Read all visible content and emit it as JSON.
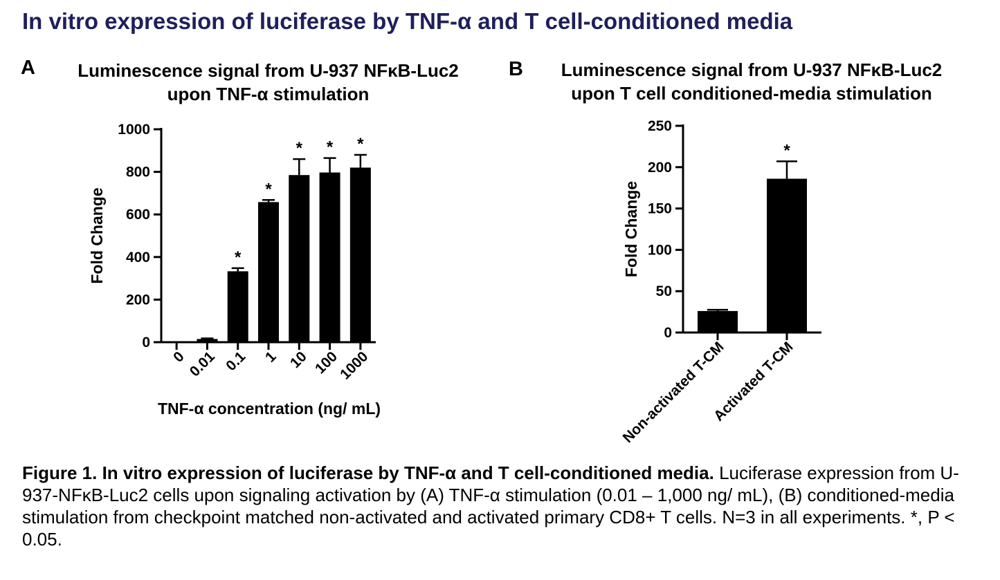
{
  "page": {
    "title": "In vitro expression of luciferase by TNF-α and T cell-conditioned media"
  },
  "panels": {
    "a": {
      "letter": "A",
      "title_line1": "Luminescence signal from U-937 NFκB-Luc2",
      "title_line2": "upon TNF-α stimulation"
    },
    "b": {
      "letter": "B",
      "title_line1": "Luminescence signal from U-937 NFκB-Luc2",
      "title_line2": "upon T cell conditioned-media stimulation"
    }
  },
  "caption": {
    "lead": "Figure 1. In vitro expression of luciferase by TNF-α and T cell-conditioned media.",
    "body": " Luciferase expression from U-937-NFκB-Luc2 cells upon signaling activation by (A) TNF-α stimulation (0.01 – 1,000 ng/ mL), (B) conditioned-media stimulation from checkpoint matched non-activated and activated primary CD8+ T cells. N=3 in all experiments. *, P < 0.05."
  },
  "chart_data": [
    {
      "id": "A",
      "type": "bar",
      "title": "Luminescence signal from U-937 NFκB-Luc2 upon TNF-α stimulation",
      "xlabel": "TNF-α concentration (ng/ mL)",
      "ylabel": "Fold Change",
      "ylim": [
        0,
        1000
      ],
      "yticks": [
        0,
        200,
        400,
        600,
        800,
        1000
      ],
      "categories": [
        "0",
        "0.01",
        "0.1",
        "1",
        "10",
        "100",
        "1000"
      ],
      "values": [
        1,
        15,
        333,
        658,
        785,
        797,
        820
      ],
      "errors": [
        0,
        3,
        15,
        10,
        75,
        68,
        60
      ],
      "significance": [
        "",
        "",
        "*",
        "*",
        "*",
        "*",
        "*"
      ],
      "bar_color": "#000000",
      "grid": false
    },
    {
      "id": "B",
      "type": "bar",
      "title": "Luminescence signal from U-937 NFκB-Luc2 upon T cell conditioned-media stimulation",
      "xlabel": "",
      "ylabel": "Fold Change",
      "ylim": [
        0,
        250
      ],
      "yticks": [
        0,
        50,
        100,
        150,
        200,
        250
      ],
      "categories": [
        "Non-activated T-CM",
        "Activated T-CM"
      ],
      "values": [
        26,
        186
      ],
      "errors": [
        1.5,
        21
      ],
      "significance": [
        "",
        "*"
      ],
      "bar_color": "#000000",
      "grid": false
    }
  ]
}
